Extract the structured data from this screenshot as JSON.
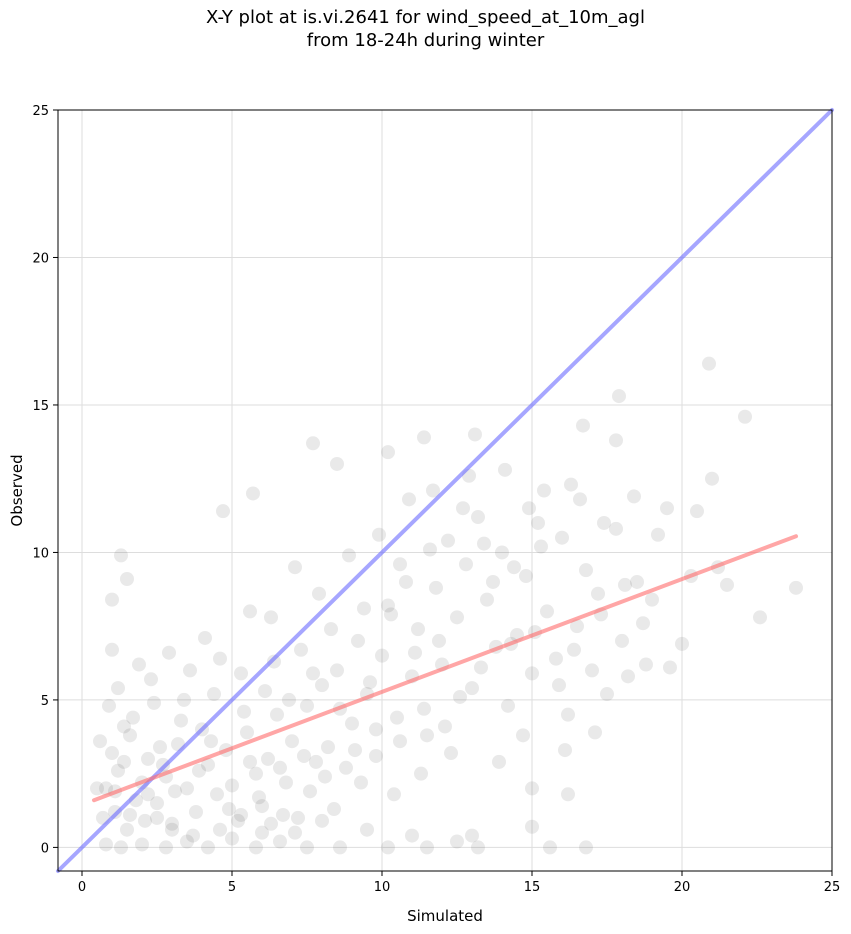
{
  "chart_data": {
    "type": "scatter",
    "title_line1": "X-Y plot at is.vi.2641 for wind_speed_at_10m_agl",
    "title_line2": "from 18-24h during winter",
    "xlabel": "Simulated",
    "ylabel": "Observed",
    "xlim": [
      -0.8,
      25
    ],
    "ylim": [
      -0.8,
      25
    ],
    "xticks": [
      0,
      5,
      10,
      15,
      20,
      25
    ],
    "yticks": [
      0,
      5,
      10,
      15,
      20,
      25
    ],
    "grid": true,
    "points_color": "#555555",
    "identity_line": {
      "x": [
        -0.8,
        25
      ],
      "y": [
        -0.8,
        25
      ],
      "color": "#6b6bff"
    },
    "fit_line": {
      "x": [
        0.4,
        23.8
      ],
      "y": [
        1.6,
        10.55
      ],
      "color": "#ff6b6b"
    },
    "points": [
      [
        1.0,
        3.2
      ],
      [
        1.2,
        2.6
      ],
      [
        1.4,
        4.1
      ],
      [
        1.6,
        3.8
      ],
      [
        0.8,
        2.0
      ],
      [
        1.1,
        1.2
      ],
      [
        1.5,
        0.6
      ],
      [
        2.0,
        2.2
      ],
      [
        2.2,
        3.0
      ],
      [
        2.5,
        1.5
      ],
      [
        2.8,
        2.4
      ],
      [
        3.0,
        0.8
      ],
      [
        3.2,
        3.5
      ],
      [
        3.5,
        2.0
      ],
      [
        3.8,
        1.2
      ],
      [
        4.0,
        4.0
      ],
      [
        4.2,
        2.8
      ],
      [
        4.5,
        1.8
      ],
      [
        4.8,
        3.3
      ],
      [
        5.0,
        2.1
      ],
      [
        5.2,
        0.9
      ],
      [
        5.5,
        3.9
      ],
      [
        5.8,
        2.5
      ],
      [
        6.0,
        1.4
      ],
      [
        6.2,
        3.0
      ],
      [
        6.5,
        4.5
      ],
      [
        6.8,
        2.2
      ],
      [
        7.0,
        3.6
      ],
      [
        7.2,
        1.0
      ],
      [
        7.5,
        4.8
      ],
      [
        7.8,
        2.9
      ],
      [
        8.0,
        5.5
      ],
      [
        8.2,
        3.4
      ],
      [
        8.5,
        6.0
      ],
      [
        8.8,
        2.7
      ],
      [
        9.0,
        4.2
      ],
      [
        9.2,
        7.0
      ],
      [
        9.5,
        5.2
      ],
      [
        9.8,
        3.1
      ],
      [
        10.0,
        6.5
      ],
      [
        10.2,
        8.2
      ],
      [
        10.5,
        4.4
      ],
      [
        10.8,
        9.0
      ],
      [
        11.0,
        5.8
      ],
      [
        11.2,
        7.4
      ],
      [
        11.5,
        3.8
      ],
      [
        11.8,
        8.8
      ],
      [
        12.0,
        6.2
      ],
      [
        12.2,
        10.4
      ],
      [
        12.5,
        7.8
      ],
      [
        12.8,
        9.6
      ],
      [
        13.0,
        5.4
      ],
      [
        13.2,
        11.2
      ],
      [
        13.5,
        8.4
      ],
      [
        13.8,
        6.8
      ],
      [
        14.0,
        10.0
      ],
      [
        14.2,
        4.8
      ],
      [
        14.5,
        7.2
      ],
      [
        14.8,
        9.2
      ],
      [
        15.0,
        5.9
      ],
      [
        15.2,
        11.0
      ],
      [
        15.5,
        8.0
      ],
      [
        15.8,
        6.4
      ],
      [
        16.0,
        10.5
      ],
      [
        16.2,
        4.5
      ],
      [
        16.5,
        7.5
      ],
      [
        16.8,
        9.4
      ],
      [
        17.0,
        6.0
      ],
      [
        17.2,
        8.6
      ],
      [
        17.5,
        5.2
      ],
      [
        17.8,
        10.8
      ],
      [
        18.0,
        7.0
      ],
      [
        18.2,
        5.8
      ],
      [
        18.5,
        9.0
      ],
      [
        18.8,
        6.2
      ],
      [
        19.0,
        8.4
      ],
      [
        19.5,
        11.5
      ],
      [
        20.0,
        6.9
      ],
      [
        20.5,
        11.4
      ],
      [
        21.0,
        12.5
      ],
      [
        21.2,
        9.5
      ],
      [
        21.5,
        8.9
      ],
      [
        22.1,
        14.6
      ],
      [
        22.6,
        7.8
      ],
      [
        23.8,
        8.8
      ],
      [
        20.9,
        16.4
      ],
      [
        17.9,
        15.3
      ],
      [
        17.8,
        13.8
      ],
      [
        16.7,
        14.3
      ],
      [
        13.1,
        14.0
      ],
      [
        11.4,
        13.9
      ],
      [
        10.2,
        13.4
      ],
      [
        8.5,
        13.0
      ],
      [
        7.7,
        13.7
      ],
      [
        5.7,
        12.0
      ],
      [
        4.7,
        11.4
      ],
      [
        1.3,
        9.9
      ],
      [
        1.5,
        9.1
      ],
      [
        1.0,
        8.4
      ],
      [
        1.0,
        6.7
      ],
      [
        0.9,
        4.8
      ],
      [
        0.6,
        3.6
      ],
      [
        0.5,
        2.0
      ],
      [
        0.7,
        1.0
      ],
      [
        0.8,
        0.1
      ],
      [
        1.3,
        0.0
      ],
      [
        2.0,
        0.1
      ],
      [
        2.8,
        0.0
      ],
      [
        3.5,
        0.2
      ],
      [
        4.2,
        0.0
      ],
      [
        5.0,
        0.3
      ],
      [
        5.8,
        0.0
      ],
      [
        6.6,
        0.2
      ],
      [
        7.5,
        0.0
      ],
      [
        8.6,
        0.0
      ],
      [
        10.2,
        0.0
      ],
      [
        11.5,
        0.0
      ],
      [
        13.2,
        0.0
      ],
      [
        15.6,
        0.0
      ],
      [
        16.8,
        0.0
      ],
      [
        15.0,
        0.7
      ],
      [
        15.0,
        2.0
      ],
      [
        16.2,
        1.8
      ],
      [
        12.5,
        0.2
      ],
      [
        13.0,
        0.4
      ],
      [
        9.5,
        0.6
      ],
      [
        11.0,
        0.4
      ],
      [
        6.0,
        0.5
      ],
      [
        3.0,
        0.6
      ],
      [
        2.5,
        1.0
      ],
      [
        1.8,
        1.6
      ],
      [
        2.6,
        3.4
      ],
      [
        3.3,
        4.3
      ],
      [
        4.4,
        5.2
      ],
      [
        5.3,
        5.9
      ],
      [
        6.4,
        6.3
      ],
      [
        7.3,
        6.7
      ],
      [
        8.3,
        7.4
      ],
      [
        9.4,
        8.1
      ],
      [
        10.6,
        9.6
      ],
      [
        11.6,
        10.1
      ],
      [
        12.7,
        11.5
      ],
      [
        13.4,
        10.3
      ],
      [
        14.4,
        9.5
      ],
      [
        15.3,
        10.2
      ],
      [
        16.6,
        11.8
      ],
      [
        17.4,
        11.0
      ],
      [
        18.4,
        11.9
      ],
      [
        19.2,
        10.6
      ],
      [
        20.3,
        9.2
      ],
      [
        4.1,
        7.1
      ],
      [
        3.6,
        6.0
      ],
      [
        2.9,
        6.6
      ],
      [
        2.3,
        5.7
      ],
      [
        1.9,
        6.2
      ],
      [
        1.2,
        5.4
      ],
      [
        5.6,
        8.0
      ],
      [
        6.3,
        7.8
      ],
      [
        7.1,
        9.5
      ],
      [
        7.9,
        8.6
      ],
      [
        8.9,
        9.9
      ],
      [
        9.9,
        10.6
      ],
      [
        10.9,
        11.8
      ],
      [
        11.7,
        12.1
      ],
      [
        12.9,
        12.6
      ],
      [
        14.1,
        12.8
      ],
      [
        15.4,
        12.1
      ],
      [
        16.3,
        12.3
      ],
      [
        14.9,
        11.5
      ],
      [
        13.7,
        9.0
      ],
      [
        12.3,
        3.2
      ],
      [
        11.3,
        2.5
      ],
      [
        10.4,
        1.8
      ],
      [
        9.3,
        2.2
      ],
      [
        8.4,
        1.3
      ],
      [
        7.6,
        1.9
      ],
      [
        6.7,
        1.1
      ],
      [
        5.9,
        1.7
      ],
      [
        4.9,
        1.3
      ],
      [
        3.9,
        2.6
      ],
      [
        3.1,
        1.9
      ],
      [
        2.1,
        0.9
      ],
      [
        1.4,
        2.9
      ],
      [
        1.7,
        4.4
      ],
      [
        2.4,
        4.9
      ],
      [
        3.4,
        5.0
      ],
      [
        4.6,
        6.4
      ],
      [
        5.4,
        4.6
      ],
      [
        6.1,
        5.3
      ],
      [
        6.9,
        5.0
      ],
      [
        7.7,
        5.9
      ],
      [
        8.6,
        4.7
      ],
      [
        9.6,
        5.6
      ],
      [
        10.3,
        7.9
      ],
      [
        11.1,
        6.6
      ],
      [
        11.9,
        7.0
      ],
      [
        12.6,
        5.1
      ],
      [
        13.3,
        6.1
      ],
      [
        14.3,
        6.9
      ],
      [
        15.1,
        7.3
      ],
      [
        15.9,
        5.5
      ],
      [
        16.4,
        6.7
      ],
      [
        17.3,
        7.9
      ],
      [
        18.1,
        8.9
      ],
      [
        18.7,
        7.6
      ],
      [
        19.6,
        6.1
      ],
      [
        17.1,
        3.9
      ],
      [
        16.1,
        3.3
      ],
      [
        14.7,
        3.8
      ],
      [
        13.9,
        2.9
      ],
      [
        12.1,
        4.1
      ],
      [
        11.4,
        4.7
      ],
      [
        10.6,
        3.6
      ],
      [
        9.8,
        4.0
      ],
      [
        9.1,
        3.3
      ],
      [
        8.1,
        2.4
      ],
      [
        7.4,
        3.1
      ],
      [
        6.6,
        2.7
      ],
      [
        5.6,
        2.9
      ],
      [
        4.3,
        3.6
      ],
      [
        2.7,
        2.8
      ],
      [
        2.2,
        1.8
      ],
      [
        1.6,
        1.1
      ],
      [
        1.1,
        1.9
      ],
      [
        3.7,
        0.4
      ],
      [
        4.6,
        0.6
      ],
      [
        5.3,
        1.1
      ],
      [
        6.3,
        0.8
      ],
      [
        7.1,
        0.5
      ],
      [
        8.0,
        0.9
      ]
    ]
  }
}
